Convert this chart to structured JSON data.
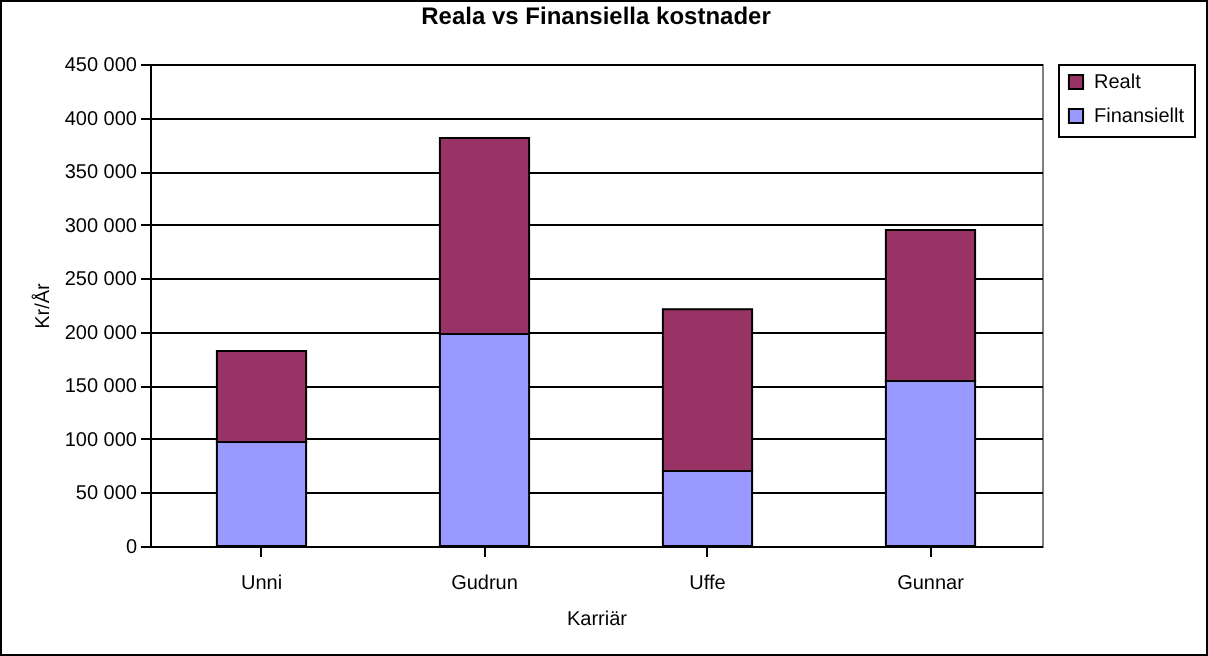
{
  "chart_data": {
    "type": "bar",
    "title": "Reala vs Finansiella kostnader",
    "xlabel": "Karriär",
    "ylabel": "Kr/År",
    "categories": [
      "Unni",
      "Gudrun",
      "Uffe",
      "Gunnar"
    ],
    "stacked": true,
    "series": [
      {
        "name": "Finansiellt",
        "color": "#9999ff",
        "values": [
          97000,
          198000,
          70000,
          154000
        ]
      },
      {
        "name": "Realt",
        "color": "#993366",
        "values": [
          85000,
          183000,
          151000,
          141000
        ]
      }
    ],
    "ylim": [
      0,
      450000
    ],
    "yticks": [
      {
        "value": 0,
        "label": "0"
      },
      {
        "value": 50000,
        "label": "50 000"
      },
      {
        "value": 100000,
        "label": "100 000"
      },
      {
        "value": 150000,
        "label": "150 000"
      },
      {
        "value": 200000,
        "label": "200 000"
      },
      {
        "value": 250000,
        "label": "250 000"
      },
      {
        "value": 300000,
        "label": "300 000"
      },
      {
        "value": 350000,
        "label": "350 000"
      },
      {
        "value": 400000,
        "label": "400 000"
      },
      {
        "value": 450000,
        "label": "450 000"
      }
    ],
    "grid": "y",
    "legend": "right"
  }
}
